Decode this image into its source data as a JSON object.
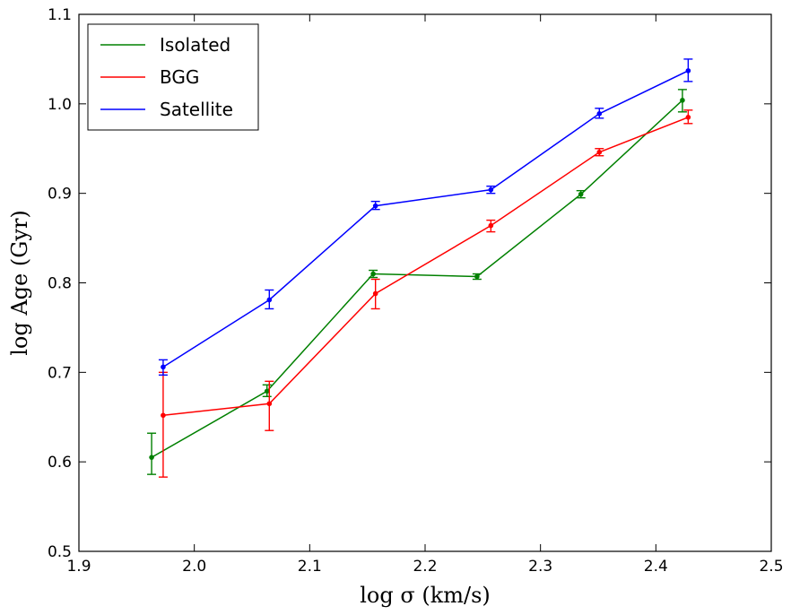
{
  "chart_data": {
    "type": "line",
    "title": "",
    "xlabel": "log σ (km/s)",
    "ylabel": "log Age (Gyr)",
    "xlim": [
      1.9,
      2.5
    ],
    "ylim": [
      0.5,
      1.1
    ],
    "xticks": [
      "1.9",
      "2.0",
      "2.1",
      "2.2",
      "2.3",
      "2.4",
      "2.5"
    ],
    "yticks": [
      "0.5",
      "0.6",
      "0.7",
      "0.8",
      "0.9",
      "1.0",
      "1.1"
    ],
    "grid": false,
    "legend_position": "top-left",
    "series": [
      {
        "name": "Isolated",
        "color": "#008000",
        "x": [
          1.963,
          2.063,
          2.155,
          2.245,
          2.335,
          2.423
        ],
        "y": [
          0.605,
          0.679,
          0.81,
          0.807,
          0.899,
          1.004
        ],
        "yerr_low": [
          0.586,
          0.673,
          0.806,
          0.804,
          0.895,
          0.991
        ],
        "yerr_high": [
          0.632,
          0.686,
          0.814,
          0.81,
          0.903,
          1.016
        ]
      },
      {
        "name": "BGG",
        "color": "#ff0000",
        "x": [
          1.973,
          2.065,
          2.157,
          2.257,
          2.351,
          2.428
        ],
        "y": [
          0.652,
          0.665,
          0.788,
          0.864,
          0.946,
          0.985
        ],
        "yerr_low": [
          0.583,
          0.635,
          0.771,
          0.857,
          0.942,
          0.978
        ],
        "yerr_high": [
          0.7,
          0.69,
          0.804,
          0.87,
          0.95,
          0.993
        ]
      },
      {
        "name": "Satellite",
        "color": "#0000ff",
        "x": [
          1.973,
          2.065,
          2.157,
          2.257,
          2.351,
          2.428
        ],
        "y": [
          0.706,
          0.781,
          0.886,
          0.904,
          0.989,
          1.037
        ],
        "yerr_low": [
          0.697,
          0.771,
          0.882,
          0.9,
          0.984,
          1.025
        ],
        "yerr_high": [
          0.714,
          0.792,
          0.891,
          0.908,
          0.995,
          1.05
        ]
      }
    ]
  }
}
